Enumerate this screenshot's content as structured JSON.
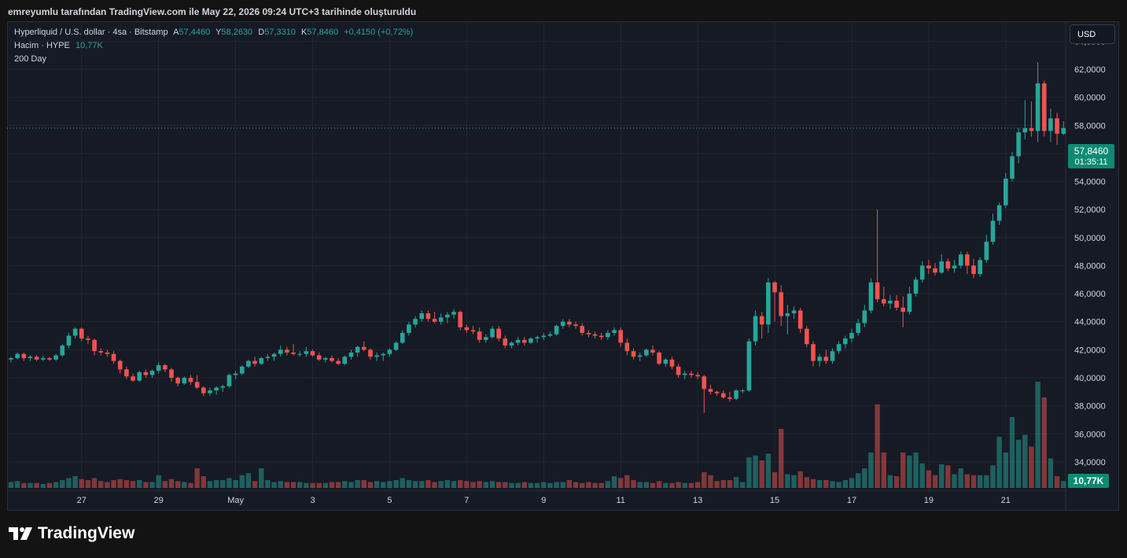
{
  "caption": "emreyumlu tarafından TradingView.com ile May 22, 2026 09:24 UTC+3 tarihinde oluşturuldu",
  "legend": {
    "symbol": "Hyperliquid / U.S. dollar · 4sa · Bitstamp",
    "o_label": "A",
    "o_value": "57,4460",
    "h_label": "Y",
    "h_value": "58,2630",
    "l_label": "D",
    "l_value": "57,3310",
    "c_label": "K",
    "c_value": "57,8460",
    "change": "+0,4150 (+0,72%)",
    "volume_label": "Hacim · HYPE",
    "volume_value": "10,77K",
    "ma_label": "200 Day"
  },
  "currency_button": "USD",
  "price_tag": {
    "price": "57,8460",
    "countdown": "01:35:11"
  },
  "volume_tag": "10,77K",
  "brand": "TradingView",
  "colors": {
    "up": "#26a69a",
    "down": "#ef5350",
    "background": "#161a25",
    "grid": "#232632"
  },
  "chart_data": {
    "type": "candlestick",
    "y_ticks": [
      "34,0000",
      "36,0000",
      "38,0000",
      "40,0000",
      "42,0000",
      "44,0000",
      "46,0000",
      "48,0000",
      "50,0000",
      "52,0000",
      "54,0000",
      "56,0000",
      "58,0000",
      "60,0000",
      "62,0000",
      "64,0000"
    ],
    "ylim": [
      32.2,
      65.2
    ],
    "x_ticks": [
      {
        "label": "27",
        "index": 11
      },
      {
        "label": "29",
        "index": 23
      },
      {
        "label": "May",
        "index": 35
      },
      {
        "label": "3",
        "index": 47
      },
      {
        "label": "5",
        "index": 59
      },
      {
        "label": "7",
        "index": 71
      },
      {
        "label": "9",
        "index": 83
      },
      {
        "label": "11",
        "index": 95
      },
      {
        "label": "13",
        "index": 107
      },
      {
        "label": "15",
        "index": 119
      },
      {
        "label": "17",
        "index": 131
      },
      {
        "label": "19",
        "index": 143
      },
      {
        "label": "21",
        "index": 155
      }
    ],
    "candles": [
      [
        41.3,
        41.5,
        41.1,
        41.4,
        0.6
      ],
      [
        41.4,
        41.8,
        41.3,
        41.7,
        0.7
      ],
      [
        41.7,
        41.8,
        41.2,
        41.4,
        0.5
      ],
      [
        41.4,
        41.6,
        41.2,
        41.5,
        0.5
      ],
      [
        41.5,
        41.6,
        41.2,
        41.3,
        0.5
      ],
      [
        41.3,
        41.6,
        41.2,
        41.4,
        0.4
      ],
      [
        41.4,
        41.5,
        41.2,
        41.3,
        0.5
      ],
      [
        41.3,
        41.7,
        41.2,
        41.6,
        0.6
      ],
      [
        41.6,
        42.4,
        41.5,
        42.3,
        0.8
      ],
      [
        42.3,
        43.2,
        42.1,
        43.0,
        1.0
      ],
      [
        43.0,
        43.6,
        42.8,
        43.5,
        1.2
      ],
      [
        43.5,
        43.6,
        42.6,
        42.8,
        0.9
      ],
      [
        42.8,
        43.0,
        42.4,
        42.7,
        0.8
      ],
      [
        42.7,
        42.8,
        41.6,
        41.9,
        1.0
      ],
      [
        41.9,
        42.1,
        41.6,
        41.8,
        0.7
      ],
      [
        41.8,
        42.0,
        41.5,
        41.7,
        0.6
      ],
      [
        41.7,
        41.9,
        41.0,
        41.2,
        0.8
      ],
      [
        41.2,
        41.3,
        40.3,
        40.6,
        0.9
      ],
      [
        40.6,
        40.8,
        39.9,
        40.1,
        0.8
      ],
      [
        40.1,
        40.3,
        39.7,
        39.8,
        0.7
      ],
      [
        39.8,
        40.5,
        39.7,
        40.4,
        0.8
      ],
      [
        40.4,
        40.6,
        40.0,
        40.2,
        0.6
      ],
      [
        40.2,
        40.6,
        40.0,
        40.5,
        0.6
      ],
      [
        40.5,
        41.1,
        40.3,
        40.9,
        1.3
      ],
      [
        40.9,
        41.0,
        40.4,
        40.6,
        0.7
      ],
      [
        40.6,
        40.7,
        39.7,
        40.0,
        0.9
      ],
      [
        40.0,
        40.1,
        39.4,
        39.6,
        0.7
      ],
      [
        39.6,
        40.1,
        39.5,
        40.0,
        0.6
      ],
      [
        40.0,
        40.2,
        39.5,
        39.7,
        0.5
      ],
      [
        39.7,
        40.2,
        39.2,
        39.3,
        2.0
      ],
      [
        39.3,
        39.4,
        38.7,
        38.9,
        1.2
      ],
      [
        38.9,
        39.3,
        38.7,
        39.1,
        0.7
      ],
      [
        39.1,
        39.4,
        38.8,
        39.3,
        0.8
      ],
      [
        39.3,
        39.5,
        39.0,
        39.4,
        0.8
      ],
      [
        39.4,
        40.3,
        39.3,
        40.2,
        1.0
      ],
      [
        40.2,
        40.5,
        39.9,
        40.3,
        0.8
      ],
      [
        40.3,
        40.9,
        40.2,
        40.8,
        1.3
      ],
      [
        40.8,
        41.3,
        40.7,
        41.2,
        1.5
      ],
      [
        41.2,
        41.5,
        40.8,
        41.0,
        0.7
      ],
      [
        41.0,
        41.5,
        40.9,
        41.4,
        2.0
      ],
      [
        41.4,
        41.7,
        41.2,
        41.5,
        0.8
      ],
      [
        41.5,
        41.8,
        41.2,
        41.7,
        0.6
      ],
      [
        41.7,
        42.3,
        41.5,
        42.0,
        0.7
      ],
      [
        42.0,
        42.2,
        41.6,
        41.8,
        0.6
      ],
      [
        41.8,
        42.4,
        41.6,
        41.7,
        0.6
      ],
      [
        41.7,
        41.9,
        41.5,
        41.7,
        0.6
      ],
      [
        41.7,
        42.2,
        41.5,
        41.9,
        0.5
      ],
      [
        41.9,
        42.0,
        41.5,
        41.6,
        0.5
      ],
      [
        41.6,
        41.8,
        41.2,
        41.3,
        0.5
      ],
      [
        41.3,
        41.5,
        41.1,
        41.4,
        0.5
      ],
      [
        41.4,
        41.6,
        41.1,
        41.2,
        0.6
      ],
      [
        41.2,
        41.4,
        40.9,
        41.0,
        0.6
      ],
      [
        41.0,
        41.6,
        40.9,
        41.5,
        0.7
      ],
      [
        41.5,
        42.0,
        41.3,
        41.8,
        0.6
      ],
      [
        41.8,
        42.3,
        41.5,
        42.2,
        0.8
      ],
      [
        42.2,
        42.6,
        41.9,
        42.0,
        0.8
      ],
      [
        42.0,
        42.1,
        41.3,
        41.5,
        0.6
      ],
      [
        41.5,
        41.8,
        41.2,
        41.6,
        0.7
      ],
      [
        41.6,
        41.8,
        41.2,
        41.7,
        0.6
      ],
      [
        41.7,
        42.1,
        41.5,
        42.0,
        0.7
      ],
      [
        42.0,
        42.6,
        41.9,
        42.5,
        0.8
      ],
      [
        42.5,
        43.4,
        42.4,
        43.2,
        1.0
      ],
      [
        43.2,
        44.0,
        43.0,
        43.8,
        0.8
      ],
      [
        43.8,
        44.4,
        43.6,
        44.2,
        0.7
      ],
      [
        44.2,
        44.8,
        44.0,
        44.6,
        0.7
      ],
      [
        44.6,
        44.8,
        44.0,
        44.2,
        0.8
      ],
      [
        44.2,
        44.7,
        43.9,
        44.0,
        0.6
      ],
      [
        44.0,
        44.6,
        43.8,
        44.3,
        0.7
      ],
      [
        44.3,
        44.7,
        43.9,
        44.5,
        0.8
      ],
      [
        44.5,
        44.9,
        44.2,
        44.7,
        0.7
      ],
      [
        44.7,
        44.8,
        43.4,
        43.6,
        0.8
      ],
      [
        43.6,
        43.8,
        43.2,
        43.4,
        0.7
      ],
      [
        43.4,
        43.7,
        43.1,
        43.3,
        0.6
      ],
      [
        43.3,
        43.6,
        42.5,
        42.7,
        0.7
      ],
      [
        42.7,
        43.1,
        42.5,
        42.9,
        0.6
      ],
      [
        42.9,
        43.7,
        42.8,
        43.5,
        0.7
      ],
      [
        43.5,
        43.7,
        42.6,
        42.8,
        0.6
      ],
      [
        42.8,
        43.0,
        42.1,
        42.3,
        0.6
      ],
      [
        42.3,
        42.6,
        42.1,
        42.5,
        0.5
      ],
      [
        42.5,
        42.9,
        42.3,
        42.7,
        0.5
      ],
      [
        42.7,
        42.9,
        42.3,
        42.5,
        0.6
      ],
      [
        42.5,
        42.9,
        42.4,
        42.8,
        0.5
      ],
      [
        42.8,
        43.0,
        42.5,
        42.9,
        0.5
      ],
      [
        42.9,
        43.2,
        42.7,
        43.0,
        0.6
      ],
      [
        43.0,
        43.3,
        42.9,
        43.1,
        0.5
      ],
      [
        43.1,
        43.8,
        43.0,
        43.7,
        0.6
      ],
      [
        43.7,
        44.2,
        43.5,
        44.0,
        0.6
      ],
      [
        44.0,
        44.2,
        43.6,
        43.8,
        0.8
      ],
      [
        43.8,
        44.0,
        43.5,
        43.7,
        0.6
      ],
      [
        43.7,
        43.9,
        43.0,
        43.2,
        0.5
      ],
      [
        43.2,
        43.4,
        42.9,
        43.1,
        0.6
      ],
      [
        43.1,
        43.3,
        42.8,
        43.0,
        0.5
      ],
      [
        43.0,
        43.2,
        42.7,
        42.9,
        0.5
      ],
      [
        42.9,
        43.4,
        42.7,
        43.2,
        0.7
      ],
      [
        43.2,
        43.6,
        43.0,
        43.4,
        1.2
      ],
      [
        43.4,
        43.6,
        42.2,
        42.5,
        1.0
      ],
      [
        42.5,
        42.8,
        41.6,
        41.9,
        1.3
      ],
      [
        41.9,
        42.1,
        41.3,
        41.5,
        0.8
      ],
      [
        41.5,
        41.8,
        41.2,
        41.6,
        0.6
      ],
      [
        41.6,
        42.1,
        41.5,
        42.0,
        0.6
      ],
      [
        42.0,
        42.3,
        41.6,
        41.8,
        0.5
      ],
      [
        41.8,
        41.9,
        40.9,
        41.0,
        0.7
      ],
      [
        41.0,
        41.4,
        40.8,
        41.3,
        0.5
      ],
      [
        41.3,
        41.5,
        40.6,
        40.8,
        0.5
      ],
      [
        40.8,
        41.0,
        40.0,
        40.2,
        0.6
      ],
      [
        40.2,
        40.5,
        39.9,
        40.3,
        0.5
      ],
      [
        40.3,
        40.5,
        40.0,
        40.2,
        0.5
      ],
      [
        40.2,
        40.4,
        39.9,
        40.1,
        0.6
      ],
      [
        40.1,
        40.2,
        37.5,
        39.2,
        1.6
      ],
      [
        39.2,
        39.5,
        38.8,
        39.0,
        1.3
      ],
      [
        39.0,
        39.1,
        38.7,
        38.9,
        0.7
      ],
      [
        38.9,
        39.1,
        38.5,
        38.6,
        0.8
      ],
      [
        38.6,
        39.0,
        38.3,
        38.5,
        0.8
      ],
      [
        38.5,
        39.2,
        38.4,
        39.1,
        1.1
      ],
      [
        39.1,
        39.2,
        38.9,
        39.1,
        0.6
      ],
      [
        39.1,
        42.8,
        39.0,
        42.6,
        3.1
      ],
      [
        42.6,
        44.8,
        42.3,
        44.4,
        3.3
      ],
      [
        44.4,
        44.7,
        42.8,
        43.8,
        2.8
      ],
      [
        43.8,
        47.1,
        43.2,
        46.8,
        3.5
      ],
      [
        46.8,
        46.9,
        44.0,
        46.1,
        1.6
      ],
      [
        46.1,
        46.6,
        43.7,
        44.4,
        6.0
      ],
      [
        44.4,
        45.2,
        43.1,
        44.6,
        1.4
      ],
      [
        44.6,
        45.1,
        44.2,
        44.8,
        1.3
      ],
      [
        44.8,
        45.0,
        43.2,
        43.5,
        1.7
      ],
      [
        43.5,
        43.7,
        42.2,
        42.4,
        1.1
      ],
      [
        42.4,
        42.6,
        40.8,
        41.2,
        0.9
      ],
      [
        41.2,
        41.7,
        40.8,
        41.5,
        0.8
      ],
      [
        41.5,
        42.0,
        41.0,
        41.2,
        0.8
      ],
      [
        41.2,
        42.1,
        41.0,
        41.9,
        0.7
      ],
      [
        41.9,
        42.6,
        41.7,
        42.4,
        0.6
      ],
      [
        42.4,
        43.0,
        42.1,
        42.8,
        0.8
      ],
      [
        42.8,
        43.5,
        42.5,
        43.2,
        1.0
      ],
      [
        43.2,
        44.2,
        43.0,
        43.9,
        1.5
      ],
      [
        43.9,
        45.2,
        43.6,
        44.8,
        2.0
      ],
      [
        44.8,
        47.1,
        44.6,
        46.8,
        3.6
      ],
      [
        46.8,
        52.0,
        45.4,
        45.6,
        8.5
      ],
      [
        45.6,
        46.5,
        45.1,
        45.3,
        3.6
      ],
      [
        45.3,
        45.9,
        44.9,
        45.5,
        1.3
      ],
      [
        45.5,
        45.9,
        44.8,
        45.0,
        1.2
      ],
      [
        45.0,
        45.8,
        43.6,
        44.7,
        3.6
      ],
      [
        44.7,
        46.5,
        44.5,
        46.0,
        3.3
      ],
      [
        46.0,
        47.2,
        45.8,
        47.0,
        3.6
      ],
      [
        47.0,
        48.3,
        46.8,
        48.0,
        2.5
      ],
      [
        48.0,
        48.4,
        47.4,
        47.8,
        1.8
      ],
      [
        47.8,
        48.2,
        47.3,
        47.5,
        1.3
      ],
      [
        47.5,
        48.8,
        47.4,
        48.3,
        2.4
      ],
      [
        48.3,
        48.5,
        47.6,
        47.8,
        2.3
      ],
      [
        47.8,
        48.4,
        47.5,
        48.0,
        1.4
      ],
      [
        48.0,
        49.0,
        47.8,
        48.8,
        2.0
      ],
      [
        48.8,
        49.0,
        47.4,
        48.0,
        1.4
      ],
      [
        48.0,
        48.5,
        47.1,
        47.4,
        1.3
      ],
      [
        47.4,
        48.6,
        47.2,
        48.4,
        1.3
      ],
      [
        48.4,
        50.2,
        48.2,
        49.7,
        1.3
      ],
      [
        49.7,
        51.7,
        49.5,
        51.2,
        2.3
      ],
      [
        51.2,
        52.5,
        50.9,
        52.3,
        5.2
      ],
      [
        52.3,
        54.6,
        52.1,
        54.2,
        3.6
      ],
      [
        54.2,
        56.1,
        54.0,
        55.8,
        7.2
      ],
      [
        55.8,
        57.8,
        55.3,
        57.5,
        4.9
      ],
      [
        57.5,
        59.8,
        57.0,
        57.8,
        5.4
      ],
      [
        57.8,
        59.7,
        57.2,
        57.6,
        4.2
      ],
      [
        57.6,
        62.5,
        56.8,
        61.0,
        10.8
      ],
      [
        61.0,
        61.2,
        57.2,
        57.6,
        9.2
      ],
      [
        57.6,
        59.2,
        56.8,
        58.5,
        3.0
      ],
      [
        58.5,
        58.9,
        56.6,
        57.4,
        1.2
      ],
      [
        57.4,
        58.3,
        57.3,
        57.8,
        0.7
      ]
    ]
  }
}
